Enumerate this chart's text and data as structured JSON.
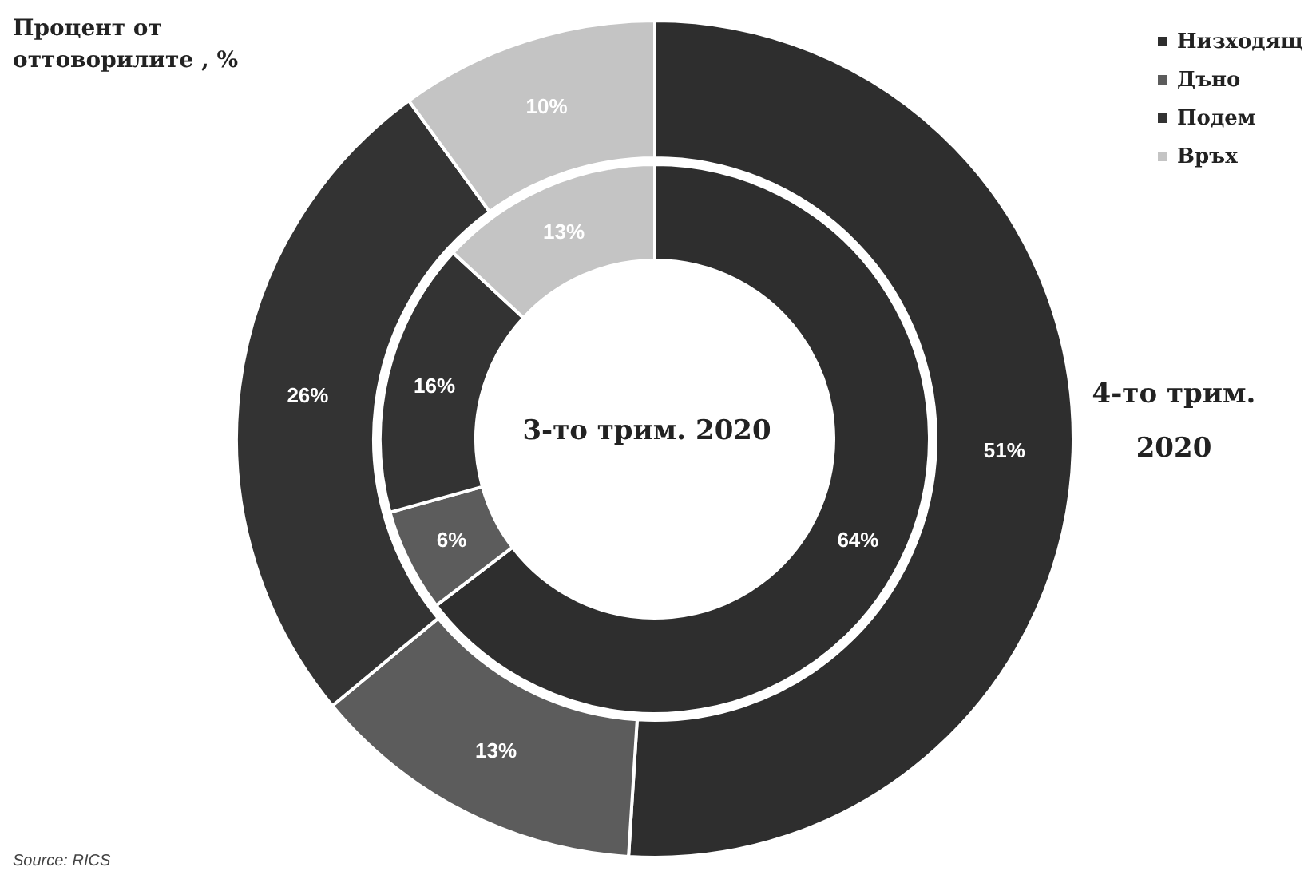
{
  "chart_data": {
    "type": "donut",
    "title": "Процент от оттоворилите , %",
    "categories": [
      "Низходящ",
      "Дъно",
      "Подем",
      "Връх"
    ],
    "colors": [
      "#2e2e2e",
      "#5c5c5c",
      "#333333",
      "#c4c4c4"
    ],
    "series": [
      {
        "name": "3-то трим. 2020",
        "values": [
          64,
          6,
          16,
          13
        ],
        "value_labels": [
          "64%",
          "6%",
          "16%",
          "13%"
        ]
      },
      {
        "name": "4-то трим. 2020",
        "values": [
          51,
          13,
          26,
          10
        ],
        "value_labels": [
          "51%",
          "13%",
          "26%",
          "10%"
        ]
      }
    ],
    "legend": "top right",
    "annotations": [
      "Source: RICS"
    ]
  }
}
